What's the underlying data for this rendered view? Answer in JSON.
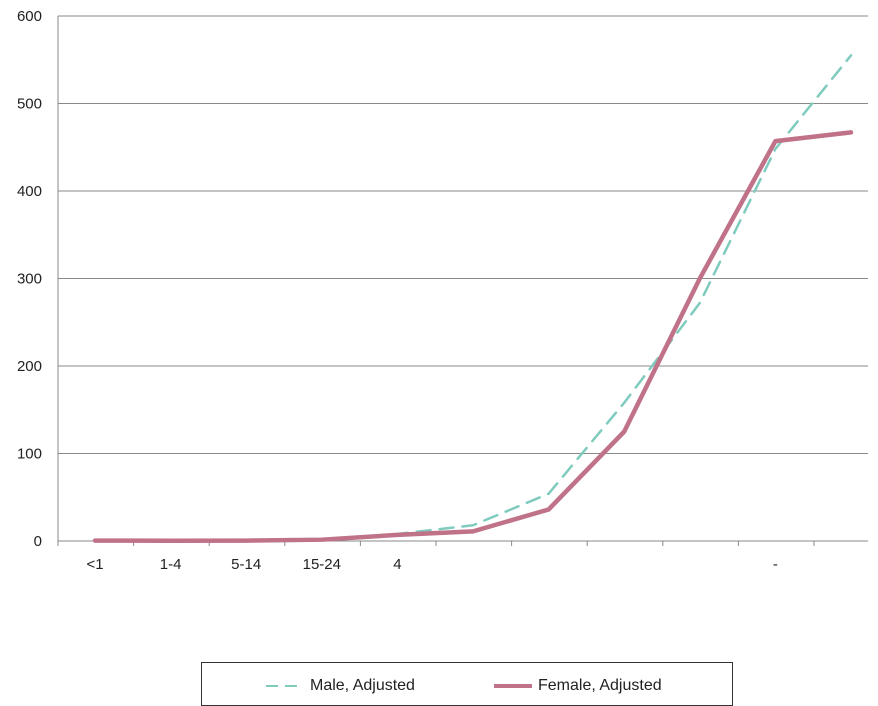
{
  "chart_data": {
    "type": "line",
    "categories": [
      "<1",
      "1-4",
      "5-14",
      "15-24",
      "",
      "",
      "",
      "",
      "",
      "",
      ""
    ],
    "tick_labels": [
      "<1",
      "1-4",
      "5-14",
      "15-24",
      "4",
      "",
      "",
      "",
      "",
      "-",
      ""
    ],
    "series": [
      {
        "name": "Male, Adjusted",
        "color": "#7fcbbe",
        "dash": "dashed",
        "values": [
          0.5,
          0.3,
          0.5,
          2,
          8,
          18,
          54,
          158,
          272,
          448,
          555
        ]
      },
      {
        "name": "Female, Adjusted",
        "color": "#c07289",
        "dash": "solid",
        "values": [
          0.5,
          0.3,
          0.4,
          1.5,
          7,
          11,
          36,
          125,
          300,
          457,
          467
        ]
      }
    ],
    "ylim": [
      0,
      600
    ],
    "yticks": [
      0,
      100,
      200,
      300,
      400,
      500,
      600
    ],
    "grid": true,
    "legend": "bottom",
    "title": "",
    "xlabel": "",
    "ylabel": ""
  }
}
